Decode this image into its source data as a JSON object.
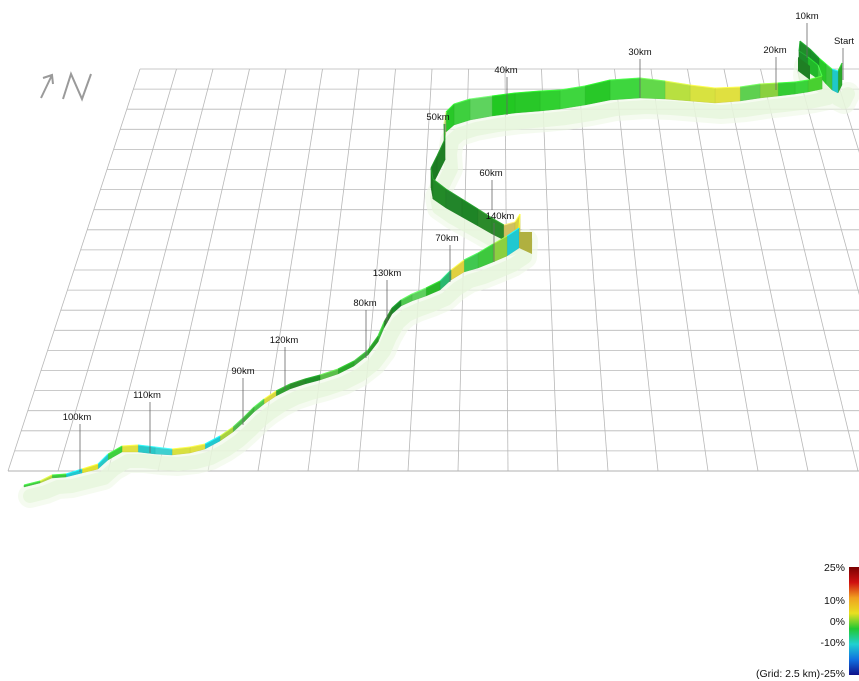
{
  "chart_data": {
    "type": "3d-elevation-profile",
    "distance_markers": [
      {
        "label": "Start",
        "km": 0
      },
      {
        "label": "10km",
        "km": 10
      },
      {
        "label": "20km",
        "km": 20
      },
      {
        "label": "30km",
        "km": 30
      },
      {
        "label": "40km",
        "km": 40
      },
      {
        "label": "50km",
        "km": 50
      },
      {
        "label": "60km",
        "km": 60
      },
      {
        "label": "70km",
        "km": 70
      },
      {
        "label": "80km",
        "km": 80
      },
      {
        "label": "90km",
        "km": 90
      },
      {
        "label": "100km",
        "km": 100
      },
      {
        "label": "110km",
        "km": 110
      },
      {
        "label": "120km",
        "km": 120
      },
      {
        "label": "130km",
        "km": 130
      },
      {
        "label": "140km",
        "km": 140
      }
    ],
    "gradient_scale": {
      "min": -25,
      "max": 25,
      "ticks": [
        "25%",
        "10%",
        "0%",
        "-10%",
        "-25%"
      ],
      "colors": [
        "#7a0000",
        "#d01010",
        "#f0a020",
        "#e8e020",
        "#22c832",
        "#20d0d0",
        "#1070e0",
        "#10108a"
      ]
    },
    "grid_label": "(Grid: 2.5 km)",
    "north_indicator": "N"
  }
}
